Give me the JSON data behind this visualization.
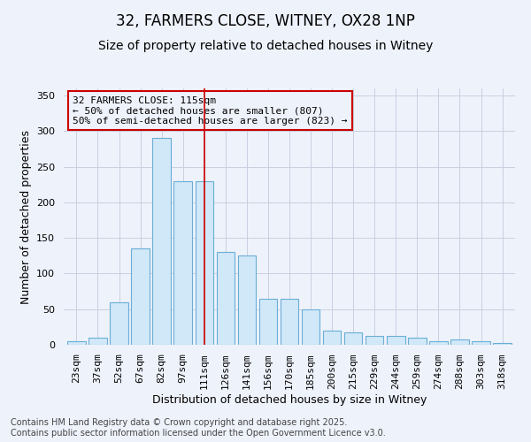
{
  "title1": "32, FARMERS CLOSE, WITNEY, OX28 1NP",
  "title2": "Size of property relative to detached houses in Witney",
  "xlabel": "Distribution of detached houses by size in Witney",
  "ylabel": "Number of detached properties",
  "categories": [
    "23sqm",
    "37sqm",
    "52sqm",
    "67sqm",
    "82sqm",
    "97sqm",
    "111sqm",
    "126sqm",
    "141sqm",
    "156sqm",
    "170sqm",
    "185sqm",
    "200sqm",
    "215sqm",
    "229sqm",
    "244sqm",
    "259sqm",
    "274sqm",
    "288sqm",
    "303sqm",
    "318sqm"
  ],
  "values": [
    5,
    10,
    60,
    135,
    290,
    230,
    230,
    130,
    125,
    65,
    65,
    50,
    20,
    18,
    12,
    12,
    10,
    5,
    8,
    5,
    3
  ],
  "bar_color_fill": "#d0e8f8",
  "bar_color_edge": "#6aaed6",
  "bar_width": 0.85,
  "vline_x_index": 6,
  "vline_color": "#cc0000",
  "annotation_line1": "32 FARMERS CLOSE: 115sqm",
  "annotation_line2": "← 50% of detached houses are smaller (807)",
  "annotation_line3": "50% of semi-detached houses are larger (823) →",
  "annotation_box_color": "#cc0000",
  "ylim": [
    0,
    360
  ],
  "yticks": [
    0,
    50,
    100,
    150,
    200,
    250,
    300,
    350
  ],
  "grid_color": "#c8d0e0",
  "bg_color": "#eef2fb",
  "footer1": "Contains HM Land Registry data © Crown copyright and database right 2025.",
  "footer2": "Contains public sector information licensed under the Open Government Licence v3.0.",
  "title_fontsize": 12,
  "subtitle_fontsize": 10,
  "tick_fontsize": 8,
  "label_fontsize": 9,
  "annotation_fontsize": 8,
  "footer_fontsize": 7
}
